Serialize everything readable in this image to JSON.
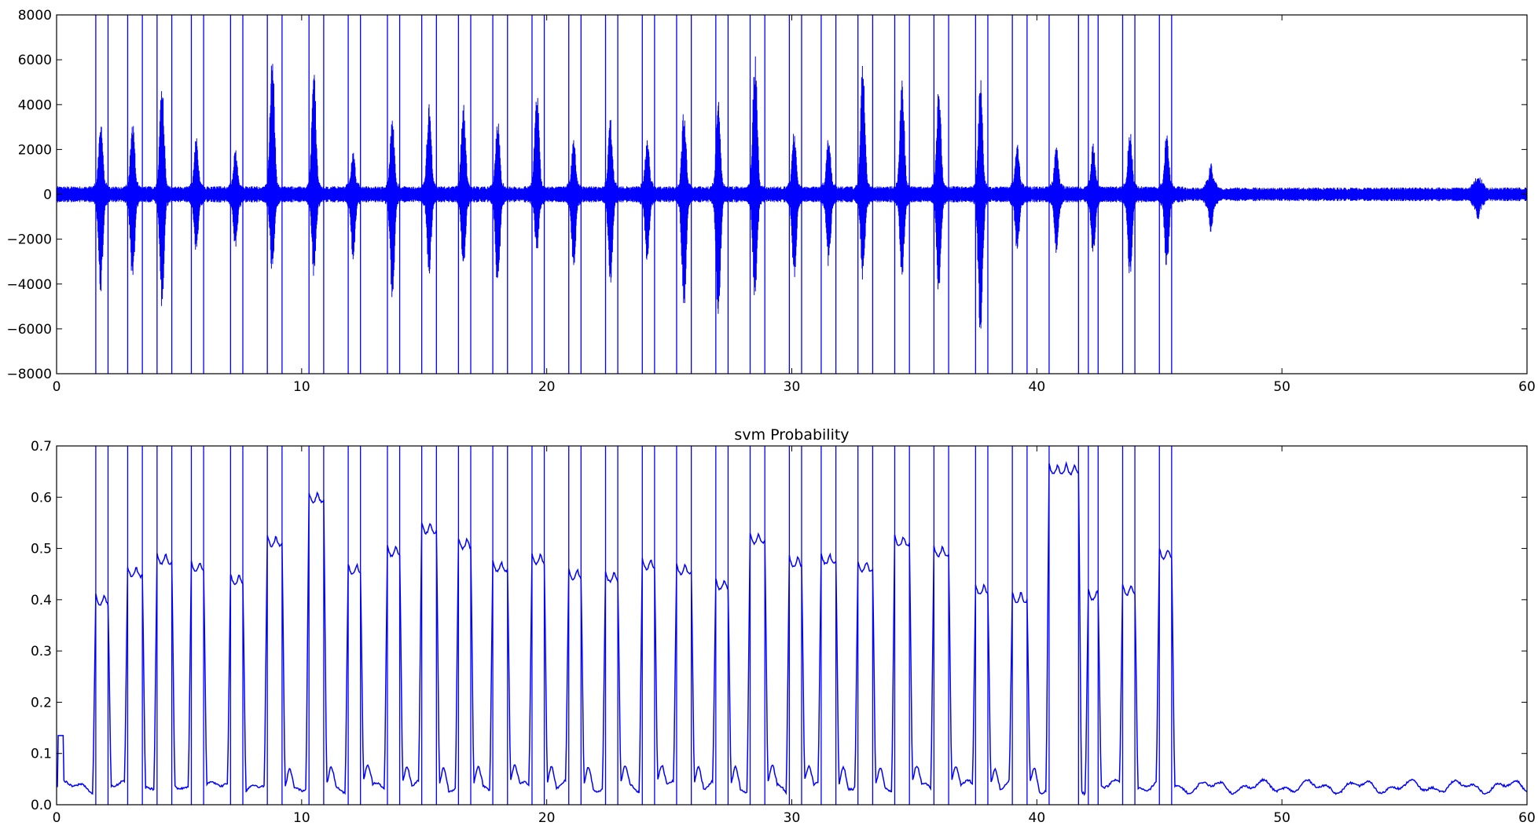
{
  "chart_data": [
    {
      "type": "line",
      "title": "",
      "xlabel": "",
      "ylabel": "",
      "xlim": [
        0,
        60
      ],
      "ylim": [
        -8000,
        8000
      ],
      "x_ticks": [
        0,
        10,
        20,
        30,
        40,
        50,
        60
      ],
      "y_ticks": [
        -8000,
        -6000,
        -4000,
        -2000,
        0,
        2000,
        4000,
        6000,
        8000
      ],
      "x_tick_labels": [
        "0",
        "10",
        "20",
        "30",
        "40",
        "50",
        "60"
      ],
      "y_tick_labels": [
        "−8000",
        "−6000",
        "−4000",
        "−2000",
        "0",
        "2000",
        "4000",
        "6000",
        "8000"
      ],
      "grid": false,
      "color": "#0000ff",
      "noise_amplitude": 300,
      "bursts": [
        {
          "x": 1.8,
          "max": 3300,
          "min": -4400
        },
        {
          "x": 3.1,
          "max": 3400,
          "min": -4100
        },
        {
          "x": 4.3,
          "max": 5100,
          "min": -5200
        },
        {
          "x": 5.7,
          "max": 2600,
          "min": -2700
        },
        {
          "x": 7.3,
          "max": 2100,
          "min": -2500
        },
        {
          "x": 8.8,
          "max": 6600,
          "min": -3700
        },
        {
          "x": 10.5,
          "max": 5500,
          "min": -3700
        },
        {
          "x": 12.1,
          "max": 1900,
          "min": -2900
        },
        {
          "x": 13.7,
          "max": 3500,
          "min": -4700
        },
        {
          "x": 15.2,
          "max": 4200,
          "min": -3600
        },
        {
          "x": 16.6,
          "max": 4300,
          "min": -3300
        },
        {
          "x": 18.0,
          "max": 3400,
          "min": -4400
        },
        {
          "x": 19.6,
          "max": 4800,
          "min": -2600
        },
        {
          "x": 21.1,
          "max": 2500,
          "min": -3300
        },
        {
          "x": 22.6,
          "max": 3400,
          "min": -4100
        },
        {
          "x": 24.1,
          "max": 2600,
          "min": -3200
        },
        {
          "x": 25.6,
          "max": 3900,
          "min": -5300
        },
        {
          "x": 27.0,
          "max": 4200,
          "min": -5600
        },
        {
          "x": 28.5,
          "max": 6500,
          "min": -4900
        },
        {
          "x": 30.1,
          "max": 2900,
          "min": -3800
        },
        {
          "x": 31.5,
          "max": 2800,
          "min": -3300
        },
        {
          "x": 32.9,
          "max": 6100,
          "min": -3900
        },
        {
          "x": 34.5,
          "max": 5300,
          "min": -3800
        },
        {
          "x": 36.0,
          "max": 4900,
          "min": -4600
        },
        {
          "x": 37.7,
          "max": 5200,
          "min": -6800
        },
        {
          "x": 39.2,
          "max": 2300,
          "min": -2700
        },
        {
          "x": 40.8,
          "max": 2200,
          "min": -2700
        },
        {
          "x": 42.3,
          "max": 2300,
          "min": -2800
        },
        {
          "x": 43.8,
          "max": 3000,
          "min": -3900
        },
        {
          "x": 45.3,
          "max": 2800,
          "min": -3500
        },
        {
          "x": 47.1,
          "max": 1400,
          "min": -1700
        },
        {
          "x": 58.0,
          "max": 800,
          "min": -1200
        }
      ],
      "vertical_lines": [
        1.6,
        2.1,
        2.9,
        3.5,
        4.1,
        4.7,
        5.5,
        6.0,
        7.1,
        7.6,
        8.6,
        9.2,
        10.3,
        10.9,
        11.9,
        12.4,
        13.5,
        14.0,
        14.9,
        15.5,
        16.4,
        16.9,
        17.8,
        18.4,
        19.4,
        19.9,
        20.9,
        21.4,
        22.4,
        22.9,
        23.9,
        24.4,
        25.3,
        25.9,
        26.9,
        27.4,
        28.3,
        28.9,
        29.9,
        30.4,
        31.2,
        31.8,
        32.7,
        33.3,
        34.2,
        34.8,
        35.8,
        36.4,
        37.5,
        38.0,
        39.0,
        39.6,
        40.5,
        41.7,
        42.1,
        42.5,
        43.5,
        44.0,
        45.0,
        45.5
      ]
    },
    {
      "type": "line",
      "title": "svm Probability",
      "xlabel": "",
      "ylabel": "",
      "xlim": [
        0,
        60
      ],
      "ylim": [
        0,
        0.7
      ],
      "x_ticks": [
        0,
        10,
        20,
        30,
        40,
        50,
        60
      ],
      "y_ticks": [
        0.0,
        0.1,
        0.2,
        0.3,
        0.4,
        0.5,
        0.6,
        0.7
      ],
      "x_tick_labels": [
        "0",
        "10",
        "20",
        "30",
        "40",
        "50",
        "60"
      ],
      "y_tick_labels": [
        "0.0",
        "0.1",
        "0.2",
        "0.3",
        "0.4",
        "0.5",
        "0.6",
        "0.7"
      ],
      "grid": false,
      "color": "#0000ff",
      "baseline": 0.035,
      "pulses": [
        {
          "start": 1.6,
          "end": 2.1,
          "height": 0.41
        },
        {
          "start": 2.9,
          "end": 3.5,
          "height": 0.465
        },
        {
          "start": 4.1,
          "end": 4.7,
          "height": 0.49
        },
        {
          "start": 5.5,
          "end": 6.0,
          "height": 0.475
        },
        {
          "start": 7.1,
          "end": 7.6,
          "height": 0.45
        },
        {
          "start": 8.6,
          "end": 9.2,
          "height": 0.525
        },
        {
          "start": 10.3,
          "end": 10.9,
          "height": 0.61
        },
        {
          "start": 11.9,
          "end": 12.4,
          "height": 0.47
        },
        {
          "start": 13.5,
          "end": 14.0,
          "height": 0.505
        },
        {
          "start": 14.9,
          "end": 15.5,
          "height": 0.55
        },
        {
          "start": 16.4,
          "end": 16.9,
          "height": 0.52
        },
        {
          "start": 17.8,
          "end": 18.4,
          "height": 0.475
        },
        {
          "start": 19.4,
          "end": 19.9,
          "height": 0.49
        },
        {
          "start": 20.9,
          "end": 21.4,
          "height": 0.46
        },
        {
          "start": 22.4,
          "end": 22.9,
          "height": 0.455
        },
        {
          "start": 23.9,
          "end": 24.4,
          "height": 0.48
        },
        {
          "start": 25.3,
          "end": 25.9,
          "height": 0.47
        },
        {
          "start": 26.9,
          "end": 27.4,
          "height": 0.44
        },
        {
          "start": 28.3,
          "end": 28.9,
          "height": 0.53
        },
        {
          "start": 29.9,
          "end": 30.4,
          "height": 0.485
        },
        {
          "start": 31.2,
          "end": 31.8,
          "height": 0.49
        },
        {
          "start": 32.7,
          "end": 33.3,
          "height": 0.475
        },
        {
          "start": 34.2,
          "end": 34.8,
          "height": 0.525
        },
        {
          "start": 35.8,
          "end": 36.4,
          "height": 0.505
        },
        {
          "start": 37.5,
          "end": 38.0,
          "height": 0.43
        },
        {
          "start": 39.0,
          "end": 39.6,
          "height": 0.415
        },
        {
          "start": 40.5,
          "end": 41.7,
          "height": 0.665
        },
        {
          "start": 42.1,
          "end": 42.5,
          "height": 0.42
        },
        {
          "start": 43.5,
          "end": 44.0,
          "height": 0.43
        },
        {
          "start": 45.0,
          "end": 45.5,
          "height": 0.5
        }
      ],
      "vertical_lines": [
        1.6,
        2.1,
        2.9,
        3.5,
        4.1,
        4.7,
        5.5,
        6.0,
        7.1,
        7.6,
        8.6,
        9.2,
        10.3,
        10.9,
        11.9,
        12.4,
        13.5,
        14.0,
        14.9,
        15.5,
        16.4,
        16.9,
        17.8,
        18.4,
        19.4,
        19.9,
        20.9,
        21.4,
        22.4,
        22.9,
        23.9,
        24.4,
        25.3,
        25.9,
        26.9,
        27.4,
        28.3,
        28.9,
        29.9,
        30.4,
        31.2,
        31.8,
        32.7,
        33.3,
        34.2,
        34.8,
        35.8,
        36.4,
        37.5,
        38.0,
        39.0,
        39.6,
        40.5,
        41.7,
        42.1,
        42.5,
        43.5,
        44.0,
        45.0,
        45.5
      ]
    }
  ]
}
